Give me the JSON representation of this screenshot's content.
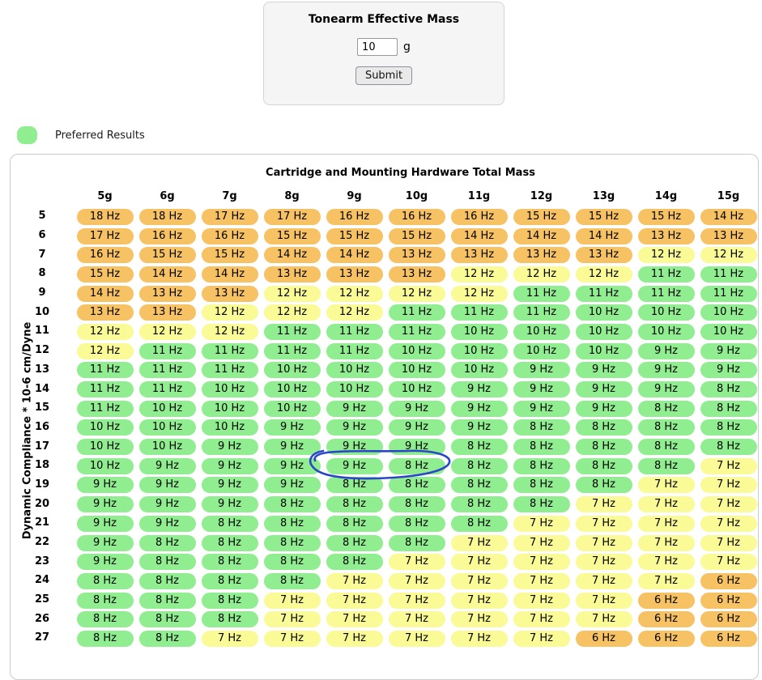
{
  "form": {
    "title": "Tonearm Effective Mass",
    "input_value": "10",
    "unit": "g",
    "submit_label": "Submit"
  },
  "legend": {
    "label": "Preferred Results",
    "color": "#90ee90"
  },
  "table": {
    "title": "Cartridge and Mounting Hardware Total Mass",
    "y_axis_label": "Dynamic Compliance * 10-6 cm/Dyne",
    "unit_suffix": " Hz",
    "columns": [
      "5g",
      "6g",
      "7g",
      "8g",
      "9g",
      "10g",
      "11g",
      "12g",
      "13g",
      "14g",
      "15g"
    ],
    "colors": {
      "orange": "#f6c263",
      "yellow": "#fafa96",
      "green": "#90ee90"
    },
    "color_rule": {
      "green_range": [
        8,
        11
      ],
      "yellow_values": [
        7,
        12
      ],
      "orange_otherwise": true
    },
    "rows": [
      {
        "compliance": "5",
        "values": [
          18,
          18,
          17,
          17,
          16,
          16,
          16,
          15,
          15,
          15,
          14
        ]
      },
      {
        "compliance": "6",
        "values": [
          17,
          16,
          16,
          15,
          15,
          15,
          14,
          14,
          14,
          13,
          13
        ]
      },
      {
        "compliance": "7",
        "values": [
          16,
          15,
          15,
          14,
          14,
          13,
          13,
          13,
          13,
          12,
          12
        ]
      },
      {
        "compliance": "8",
        "values": [
          15,
          14,
          14,
          13,
          13,
          13,
          12,
          12,
          12,
          11,
          11
        ]
      },
      {
        "compliance": "9",
        "values": [
          14,
          13,
          13,
          12,
          12,
          12,
          12,
          11,
          11,
          11,
          11
        ]
      },
      {
        "compliance": "10",
        "values": [
          13,
          13,
          12,
          12,
          12,
          11,
          11,
          11,
          10,
          10,
          10
        ]
      },
      {
        "compliance": "11",
        "values": [
          12,
          12,
          12,
          11,
          11,
          11,
          10,
          10,
          10,
          10,
          10
        ]
      },
      {
        "compliance": "12",
        "values": [
          12,
          11,
          11,
          11,
          11,
          10,
          10,
          10,
          10,
          9,
          9
        ]
      },
      {
        "compliance": "13",
        "values": [
          11,
          11,
          11,
          10,
          10,
          10,
          10,
          9,
          9,
          9,
          9
        ]
      },
      {
        "compliance": "14",
        "values": [
          11,
          11,
          10,
          10,
          10,
          10,
          9,
          9,
          9,
          9,
          8
        ]
      },
      {
        "compliance": "15",
        "values": [
          11,
          10,
          10,
          10,
          9,
          9,
          9,
          9,
          9,
          8,
          8
        ]
      },
      {
        "compliance": "16",
        "values": [
          10,
          10,
          10,
          9,
          9,
          9,
          9,
          8,
          8,
          8,
          8
        ]
      },
      {
        "compliance": "17",
        "values": [
          10,
          10,
          9,
          9,
          9,
          9,
          8,
          8,
          8,
          8,
          8
        ]
      },
      {
        "compliance": "18",
        "values": [
          10,
          9,
          9,
          9,
          9,
          8,
          8,
          8,
          8,
          8,
          7
        ]
      },
      {
        "compliance": "19",
        "values": [
          9,
          9,
          9,
          9,
          8,
          8,
          8,
          8,
          8,
          7,
          7
        ]
      },
      {
        "compliance": "20",
        "values": [
          9,
          9,
          9,
          8,
          8,
          8,
          8,
          8,
          7,
          7,
          7
        ]
      },
      {
        "compliance": "21",
        "values": [
          9,
          9,
          8,
          8,
          8,
          8,
          8,
          7,
          7,
          7,
          7
        ]
      },
      {
        "compliance": "22",
        "values": [
          9,
          8,
          8,
          8,
          8,
          8,
          7,
          7,
          7,
          7,
          7
        ]
      },
      {
        "compliance": "23",
        "values": [
          9,
          8,
          8,
          8,
          8,
          7,
          7,
          7,
          7,
          7,
          7
        ]
      },
      {
        "compliance": "24",
        "values": [
          8,
          8,
          8,
          8,
          7,
          7,
          7,
          7,
          7,
          7,
          6
        ]
      },
      {
        "compliance": "25",
        "values": [
          8,
          8,
          8,
          7,
          7,
          7,
          7,
          7,
          7,
          6,
          6
        ]
      },
      {
        "compliance": "26",
        "values": [
          8,
          8,
          8,
          7,
          7,
          7,
          7,
          7,
          7,
          6,
          6
        ]
      },
      {
        "compliance": "27",
        "values": [
          8,
          8,
          7,
          7,
          7,
          7,
          7,
          7,
          6,
          6,
          6
        ]
      }
    ]
  },
  "annotation": {
    "type": "hand-drawn-ellipse",
    "color": "#2b46c8",
    "circled_row_compliance": "18",
    "circled_columns": [
      "9g",
      "10g"
    ],
    "circled_values": [
      "9 Hz",
      "8 Hz"
    ]
  }
}
